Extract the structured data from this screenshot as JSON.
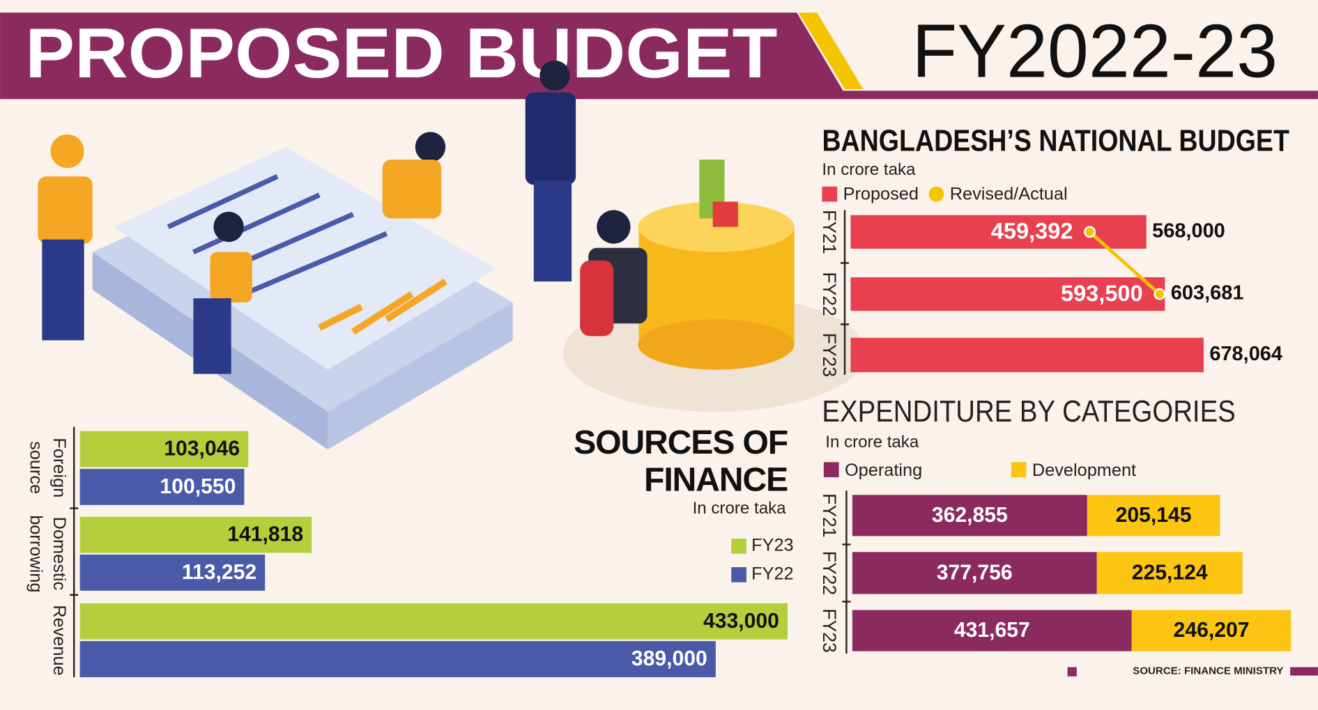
{
  "header": {
    "title": "PROPOSED BUDGET",
    "fiscal_year": "FY2022-23"
  },
  "chart_data": [
    {
      "type": "bar",
      "title": "BANGLADESH’S NATIONAL BUDGET",
      "subtitle": "In crore taka",
      "categories": [
        "FY21",
        "FY22",
        "FY23"
      ],
      "series": [
        {
          "name": "Proposed",
          "color": "#e8404f",
          "values": [
            568000,
            603681,
            678064
          ],
          "value_labels": [
            "568,000",
            "603,681",
            "678,064"
          ]
        },
        {
          "name": "Revised/Actual",
          "type": "line",
          "color": "#f5c400",
          "values": [
            459392,
            593500,
            null
          ],
          "value_labels": [
            "459,392",
            "593,500",
            null
          ]
        }
      ]
    },
    {
      "type": "stacked_bar",
      "title": "EXPENDITURE BY CATEGORIES",
      "subtitle": "In crore taka",
      "categories": [
        "FY21",
        "FY22",
        "FY23"
      ],
      "series": [
        {
          "name": "Operating",
          "color": "#8b2a5f",
          "values": [
            362855,
            377756,
            431657
          ],
          "value_labels": [
            "362,855",
            "377,756",
            "431,657"
          ]
        },
        {
          "name": "Development",
          "color": "#fcc512",
          "values": [
            205145,
            225124,
            246207
          ],
          "value_labels": [
            "205,145",
            "225,124",
            "246,207"
          ]
        }
      ]
    },
    {
      "type": "grouped_bar",
      "title": "SOURCES OF FINANCE",
      "subtitle": "In crore taka",
      "categories": [
        "Foreign source",
        "Domestic borrowing",
        "Revenue"
      ],
      "series": [
        {
          "name": "FY23",
          "color": "#b5cf3c",
          "values": [
            103046,
            141818,
            433000
          ],
          "value_labels": [
            "103,046",
            "141,818",
            "433,000"
          ]
        },
        {
          "name": "FY22",
          "color": "#4a5aa8",
          "values": [
            100550,
            113252,
            389000
          ],
          "value_labels": [
            "100,550",
            "113,252",
            "389,000"
          ]
        }
      ]
    }
  ],
  "source": "SOURCE: FINANCE MINISTRY"
}
